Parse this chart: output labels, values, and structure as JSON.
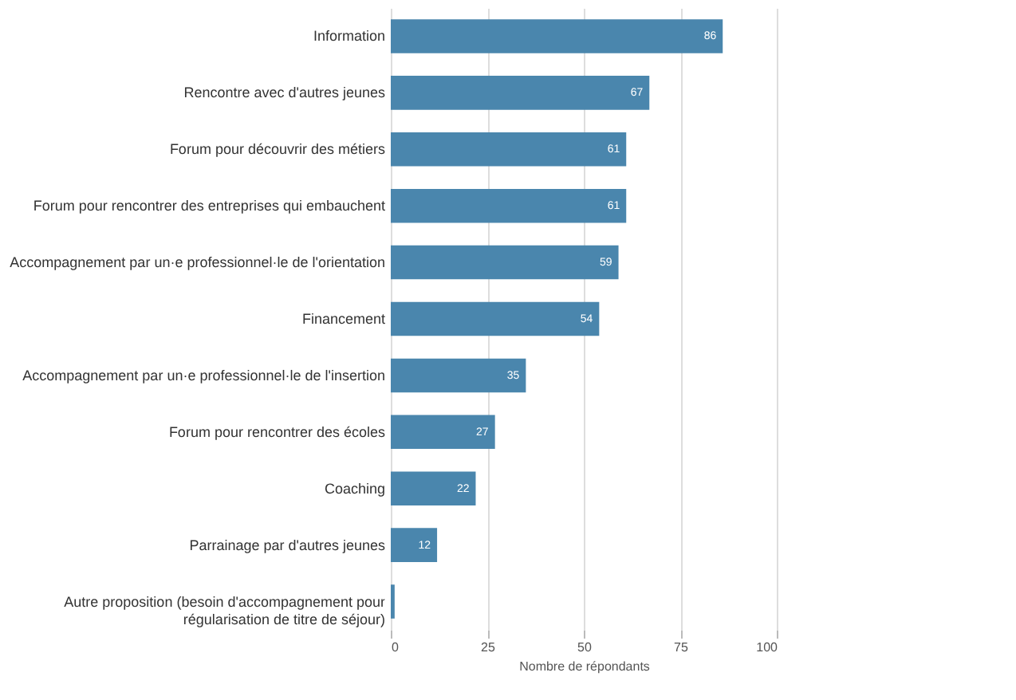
{
  "chart_data": {
    "type": "bar",
    "orientation": "horizontal",
    "xlabel": "Nombre de répondants",
    "categories": [
      "Information",
      "Rencontre avec d'autres jeunes",
      "Forum pour découvrir des métiers",
      "Forum pour rencontrer des entreprises qui embauchent",
      "Accompagnement par un·e professionnel·le de l'orientation",
      "Financement",
      "Accompagnement par un·e professionnel·le de l'insertion",
      "Forum pour rencontrer des écoles",
      "Coaching",
      "Parrainage par d'autres jeunes",
      "Autre proposition (besoin d'accompagnement pour\nrégularisation de titre de séjour)"
    ],
    "values": [
      86,
      67,
      61,
      61,
      59,
      54,
      35,
      27,
      22,
      12,
      1
    ],
    "color": "#4a86ad",
    "xlim": [
      0,
      100
    ],
    "xticks": [
      0,
      25,
      50,
      75,
      100
    ],
    "grid": "x",
    "data_labels": true
  }
}
